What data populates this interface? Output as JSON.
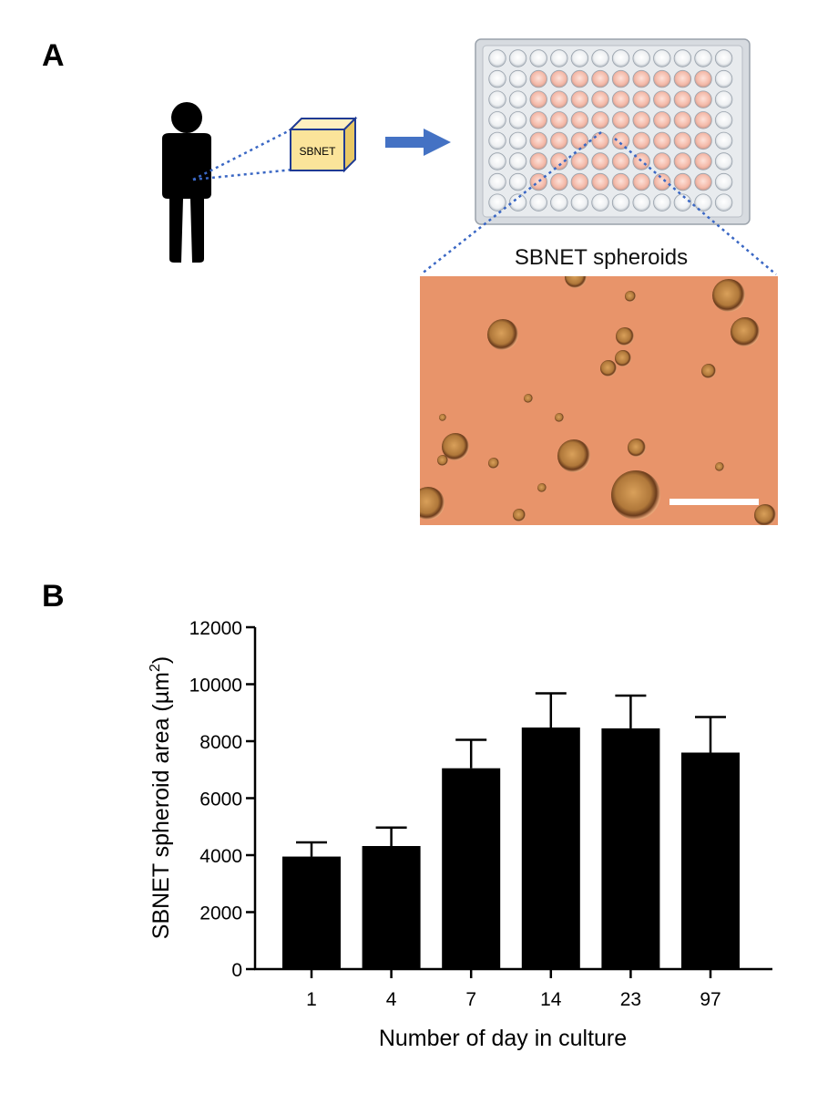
{
  "panels": {
    "a_label": "A",
    "b_label": "B"
  },
  "figure_a": {
    "box_label": "SBNET",
    "micrograph_title": "SBNET spheroids",
    "colors": {
      "arrow": "#4472c4",
      "box_fill": "#fbe49a",
      "box_edge": "#1f3a93",
      "micrograph_bg": "#e8946a",
      "plate_well_tint": "#f4b9a8"
    }
  },
  "chart_data": {
    "type": "bar",
    "title": "",
    "xlabel": "Number of day in culture",
    "ylabel": "SBNET spheroid area (µm²)",
    "ylabel_prefix": "SBNET spheroid area (",
    "ylabel_unit": "µm",
    "ylabel_sup": "2",
    "ylabel_suffix": ")",
    "categories": [
      "1",
      "4",
      "7",
      "14",
      "23",
      "97"
    ],
    "values": [
      3950,
      4320,
      7050,
      8480,
      8450,
      7600
    ],
    "errors": [
      500,
      650,
      1000,
      1200,
      1150,
      1250
    ],
    "ylim": [
      0,
      12000
    ],
    "yticks": [
      0,
      2000,
      4000,
      6000,
      8000,
      10000,
      12000
    ],
    "ytick_labels": [
      "0",
      "2000",
      "4000",
      "6000",
      "8000",
      "10000",
      "12000"
    ],
    "bar_color": "#000000",
    "grid": false
  }
}
